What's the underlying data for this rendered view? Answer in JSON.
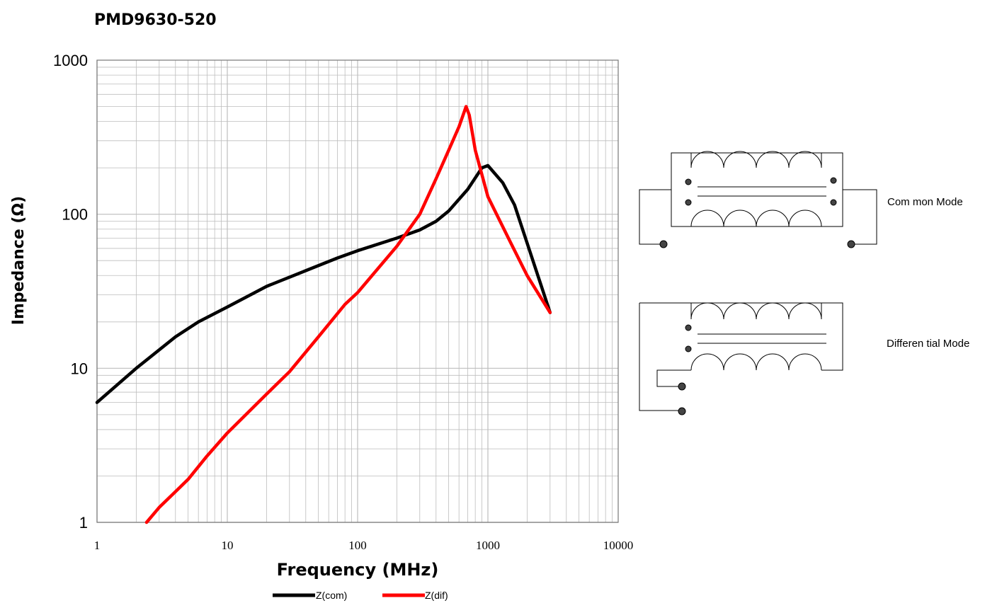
{
  "chart_data": {
    "type": "line",
    "title": "PMD9630-520",
    "xlabel": "Frequency (MHz)",
    "ylabel": "Impedance (Ω)",
    "xscale": "log",
    "yscale": "log",
    "xlim": [
      1,
      10000
    ],
    "ylim": [
      1,
      1000
    ],
    "x_tick_labels": [
      "1",
      "10",
      "100",
      "1000",
      "10000"
    ],
    "y_tick_labels": [
      "1",
      "10",
      "100",
      "1000"
    ],
    "grid": true,
    "legend_position": "bottom",
    "series": [
      {
        "name": "Z(com)",
        "color": "#000000",
        "points": [
          [
            1,
            6
          ],
          [
            2,
            10
          ],
          [
            4,
            16
          ],
          [
            6,
            20
          ],
          [
            10,
            25
          ],
          [
            20,
            34
          ],
          [
            40,
            43
          ],
          [
            70,
            52
          ],
          [
            100,
            58
          ],
          [
            200,
            70
          ],
          [
            300,
            79
          ],
          [
            400,
            90
          ],
          [
            500,
            105
          ],
          [
            700,
            145
          ],
          [
            900,
            200
          ],
          [
            1000,
            207
          ],
          [
            1300,
            160
          ],
          [
            1600,
            115
          ],
          [
            2000,
            65
          ],
          [
            3000,
            23
          ]
        ]
      },
      {
        "name": "Z(dif)",
        "color": "#ff0000",
        "points": [
          [
            2.4,
            1
          ],
          [
            3,
            1.25
          ],
          [
            5,
            1.9
          ],
          [
            7,
            2.7
          ],
          [
            10,
            3.8
          ],
          [
            20,
            6.8
          ],
          [
            30,
            9.5
          ],
          [
            50,
            16
          ],
          [
            80,
            26
          ],
          [
            100,
            31
          ],
          [
            200,
            62
          ],
          [
            300,
            100
          ],
          [
            400,
            170
          ],
          [
            500,
            260
          ],
          [
            600,
            370
          ],
          [
            680,
            500
          ],
          [
            720,
            440
          ],
          [
            800,
            260
          ],
          [
            1000,
            130
          ],
          [
            1500,
            65
          ],
          [
            2000,
            40
          ],
          [
            3000,
            23
          ]
        ]
      }
    ]
  },
  "diagrams": {
    "common_mode_label": "Com mon Mode",
    "differential_mode_label": "Differen tial Mode"
  }
}
